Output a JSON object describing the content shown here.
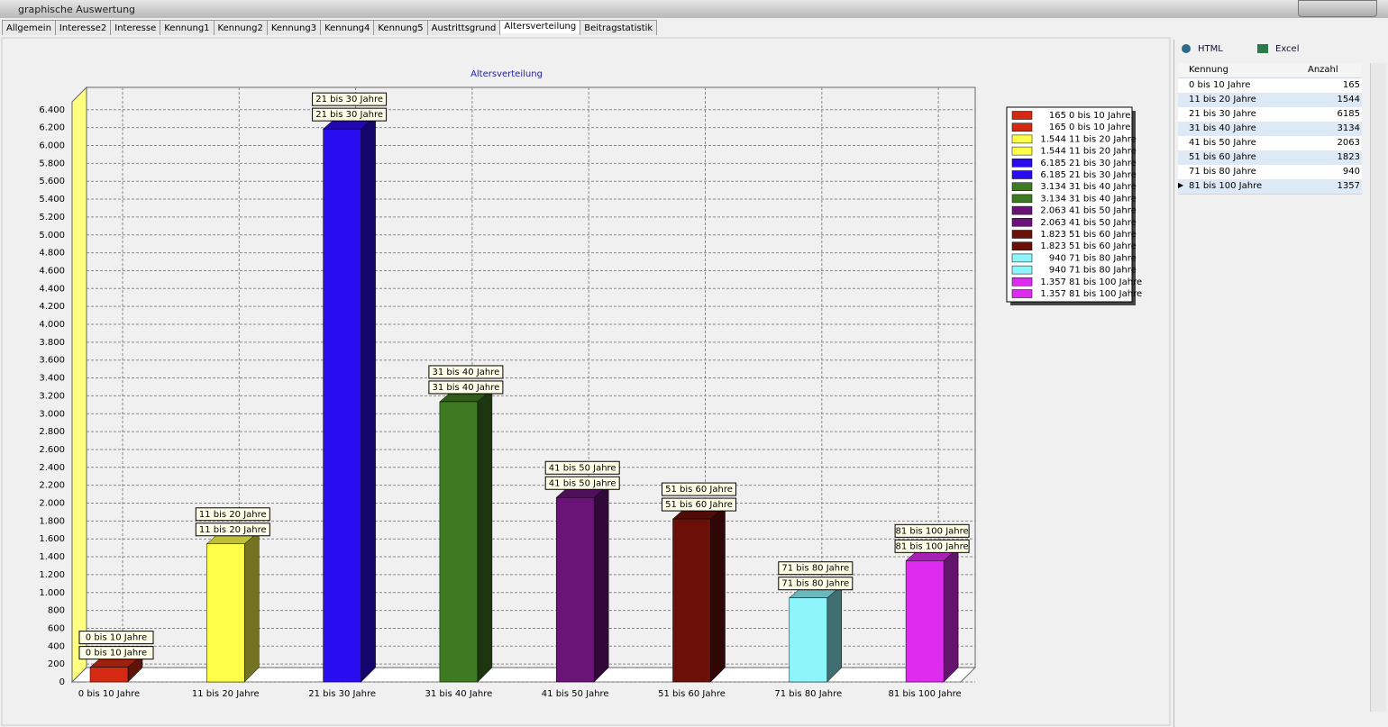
{
  "window": {
    "title": "graphische Auswertung"
  },
  "tabs": [
    "Allgemein",
    "Interesse2",
    "Interesse",
    "Kennung1",
    "Kennung2",
    "Kennung3",
    "Kennung4",
    "Kennung5",
    "Austrittsgrund",
    "Altersverteilung",
    "Beitragstatistik"
  ],
  "active_tab": 9,
  "toolbar": {
    "html": "HTML",
    "excel": "Excel"
  },
  "table": {
    "headers": [
      "Kennung",
      "Anzahl"
    ]
  },
  "chart_data": {
    "type": "bar",
    "title": "Altersverteilung",
    "categories": [
      "0 bis 10 Jahre",
      "11 bis 20 Jahre",
      "21 bis 30 Jahre",
      "31 bis 40 Jahre",
      "41 bis 50 Jahre",
      "51 bis 60 Jahre",
      "71 bis 80 Jahre",
      "81 bis 100 Jahre"
    ],
    "values": [
      165,
      1544,
      6185,
      3134,
      2063,
      1823,
      940,
      1357
    ],
    "value_labels": [
      "165",
      "1.544",
      "6.185",
      "3.134",
      "2.063",
      "1.823",
      "940",
      "1.357"
    ],
    "colors": [
      "#d42a14",
      "#ffff4a",
      "#2a0cf0",
      "#3e7a22",
      "#6a1478",
      "#6a1008",
      "#8ef5fb",
      "#dd2cf0"
    ],
    "ylim": [
      0,
      6650
    ],
    "yticks": [
      0,
      200,
      400,
      600,
      800,
      {
        "value": 1000,
        "label": "1.000"
      },
      {
        "value": 1200,
        "label": "1.200"
      },
      {
        "value": 1400,
        "label": "1.400"
      },
      {
        "value": 1600,
        "label": "1.600"
      },
      {
        "value": 1800,
        "label": "1.800"
      },
      {
        "value": 2000,
        "label": "2.000"
      },
      {
        "value": 2200,
        "label": "2.200"
      },
      {
        "value": 2400,
        "label": "2.400"
      },
      {
        "value": 2600,
        "label": "2.600"
      },
      {
        "value": 2800,
        "label": "2.800"
      },
      {
        "value": 3000,
        "label": "3.000"
      },
      {
        "value": 3200,
        "label": "3.200"
      },
      {
        "value": 3400,
        "label": "3.400"
      },
      {
        "value": 3600,
        "label": "3.600"
      },
      {
        "value": 3800,
        "label": "3.800"
      },
      {
        "value": 4000,
        "label": "4.000"
      },
      {
        "value": 4200,
        "label": "4.200"
      },
      {
        "value": 4400,
        "label": "4.400"
      },
      {
        "value": 4600,
        "label": "4.600"
      },
      {
        "value": 4800,
        "label": "4.800"
      },
      {
        "value": 5000,
        "label": "5.000"
      },
      {
        "value": 5200,
        "label": "5.200"
      },
      {
        "value": 5400,
        "label": "5.400"
      },
      {
        "value": 5600,
        "label": "5.600"
      },
      {
        "value": 5800,
        "label": "5.800"
      },
      {
        "value": 6000,
        "label": "6.000"
      },
      {
        "value": 6200,
        "label": "6.200"
      },
      {
        "value": 6400,
        "label": "6.400"
      }
    ],
    "grid": true
  }
}
